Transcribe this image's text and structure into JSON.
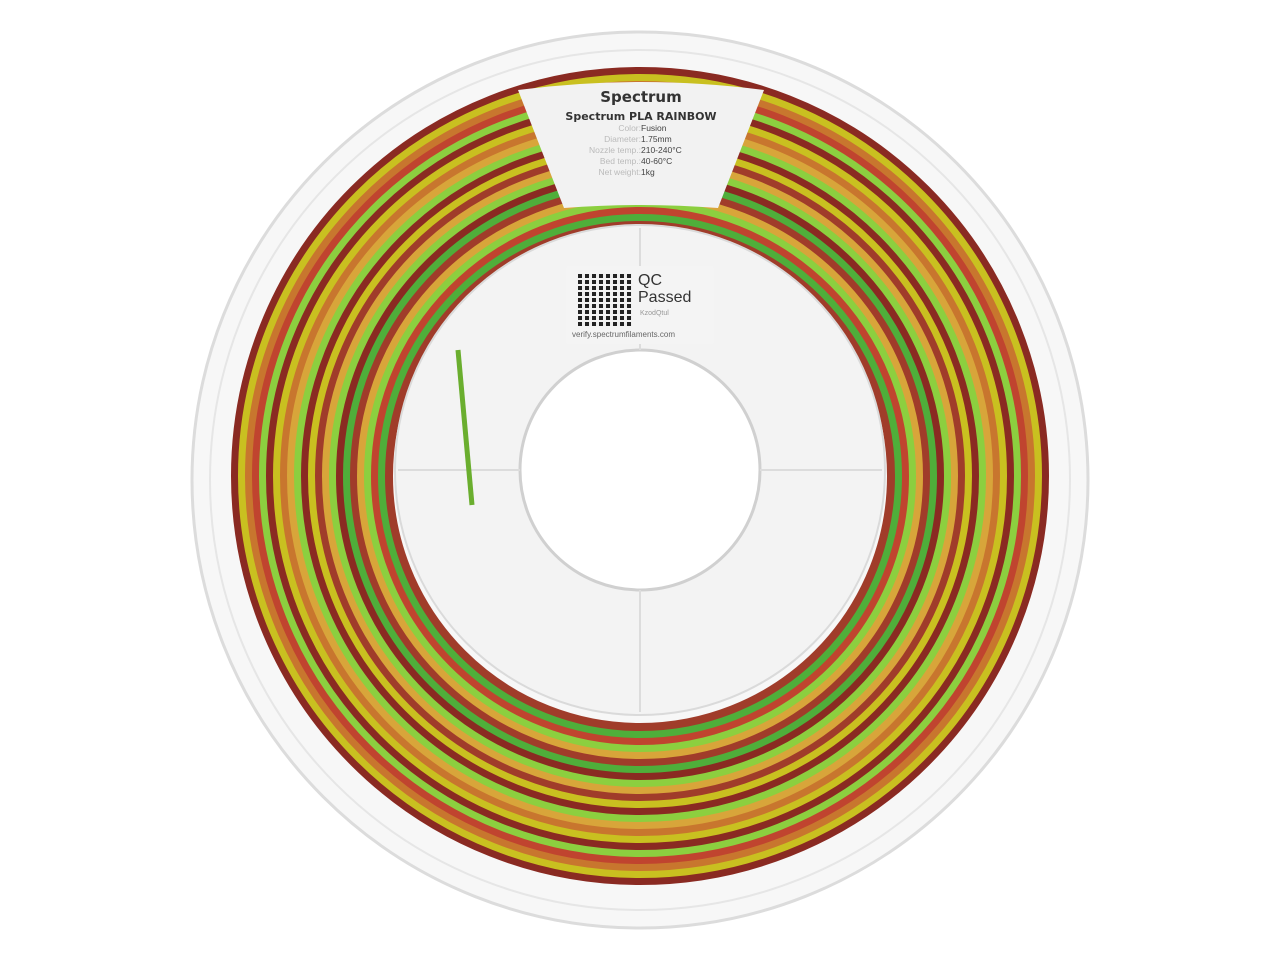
{
  "label": {
    "brand": "Spectrum",
    "product": "Spectrum PLA RAINBOW",
    "specs": [
      {
        "key": "Color:",
        "value": "Fusion"
      },
      {
        "key": "Diameter:",
        "value": "1.75mm"
      },
      {
        "key": "Nozzle temp.:",
        "value": "210-240°C"
      },
      {
        "key": "Bed temp.:",
        "value": "40-60°C"
      },
      {
        "key": "Net weight:",
        "value": "1kg"
      }
    ]
  },
  "qc_sticker": {
    "title": "QC Passed",
    "code": "KzodQtul",
    "url": "verify.spectrumfilaments.com"
  },
  "filament_colors": [
    "#8a2a22",
    "#c0442f",
    "#d8a53a",
    "#c9c020",
    "#4fae3a",
    "#8ccf3f",
    "#c8762e",
    "#a03c2a"
  ]
}
